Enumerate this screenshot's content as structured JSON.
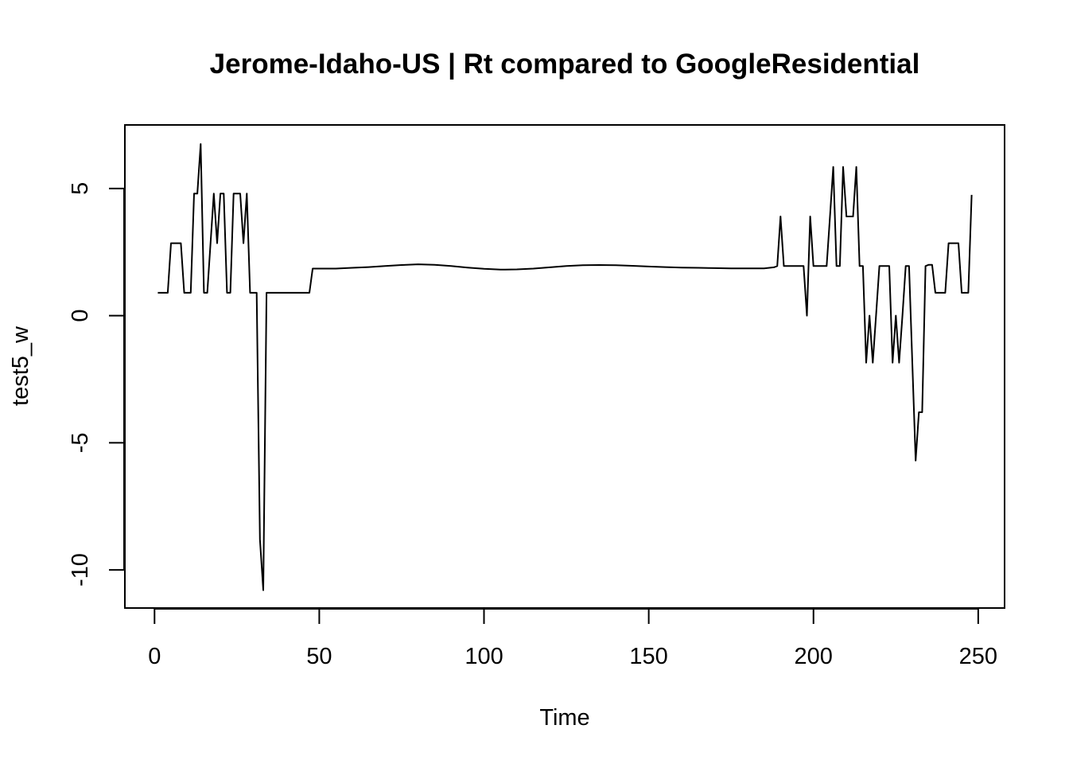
{
  "chart_data": {
    "type": "line",
    "title": "Jerome-Idaho-US | Rt compared to GoogleResidential",
    "xlabel": "Time",
    "ylabel": "test5_w",
    "xlim": [
      -9,
      258
    ],
    "ylim": [
      -11.5,
      7.5
    ],
    "x_ticks": [
      0,
      50,
      100,
      150,
      200,
      250
    ],
    "x_tick_labels": [
      "0",
      "50",
      "100",
      "150",
      "200",
      "250"
    ],
    "y_ticks": [
      -10,
      -5,
      0,
      5
    ],
    "y_tick_labels": [
      "-10",
      "-5",
      "0",
      "5"
    ],
    "grid": false,
    "line_color": "#000000",
    "series": [
      {
        "x": [
          1,
          4,
          5,
          7,
          8,
          9,
          11,
          12,
          13,
          14,
          15,
          16,
          17,
          18,
          19,
          20,
          21,
          22,
          23,
          24,
          26,
          27,
          28,
          29,
          30,
          31,
          32,
          33,
          34,
          36,
          40,
          44,
          47,
          48,
          50,
          55,
          60,
          65,
          70,
          75,
          80,
          85,
          90,
          95,
          100,
          105,
          110,
          115,
          120,
          125,
          130,
          135,
          140,
          145,
          150,
          155,
          160,
          165,
          170,
          175,
          180,
          185,
          188,
          189,
          190,
          191,
          193,
          195,
          196,
          197,
          198,
          199,
          200,
          201,
          203,
          204,
          205,
          206,
          207,
          208,
          209,
          210,
          211,
          212,
          213,
          214,
          215,
          216,
          217,
          218,
          219,
          220,
          221,
          222,
          223,
          224,
          225,
          226,
          227,
          228,
          229,
          230,
          231,
          232,
          233,
          234,
          235,
          236,
          237,
          238,
          239,
          240,
          241,
          242,
          243,
          244,
          245,
          246,
          247,
          248
        ],
        "values": [
          0.9,
          0.9,
          2.85,
          2.85,
          2.85,
          0.9,
          0.9,
          4.8,
          4.8,
          6.75,
          0.9,
          0.9,
          2.85,
          4.8,
          2.85,
          4.8,
          4.8,
          0.9,
          0.9,
          4.8,
          4.8,
          2.85,
          4.8,
          0.9,
          0.9,
          0.9,
          -8.8,
          -10.8,
          0.9,
          0.9,
          0.9,
          0.9,
          0.9,
          1.85,
          1.85,
          1.85,
          1.88,
          1.91,
          1.95,
          1.99,
          2.02,
          2.0,
          1.95,
          1.89,
          1.84,
          1.81,
          1.82,
          1.85,
          1.9,
          1.95,
          1.98,
          1.99,
          1.98,
          1.96,
          1.93,
          1.91,
          1.89,
          1.88,
          1.87,
          1.86,
          1.86,
          1.86,
          1.9,
          1.95,
          3.9,
          1.95,
          1.95,
          1.95,
          1.95,
          1.95,
          0.0,
          3.9,
          1.95,
          1.95,
          1.95,
          1.95,
          3.9,
          5.85,
          1.95,
          1.95,
          5.85,
          3.9,
          3.9,
          3.9,
          5.85,
          1.95,
          1.95,
          -1.85,
          0.0,
          -1.85,
          0.0,
          1.95,
          1.95,
          1.95,
          1.95,
          -1.85,
          0.0,
          -1.85,
          0.0,
          1.95,
          1.95,
          -1.85,
          -5.7,
          -3.8,
          -3.8,
          1.95,
          2.0,
          2.0,
          0.9,
          0.9,
          0.9,
          0.9,
          2.85,
          2.85,
          2.85,
          2.85,
          0.9,
          0.9,
          0.9,
          4.75
        ]
      }
    ]
  }
}
